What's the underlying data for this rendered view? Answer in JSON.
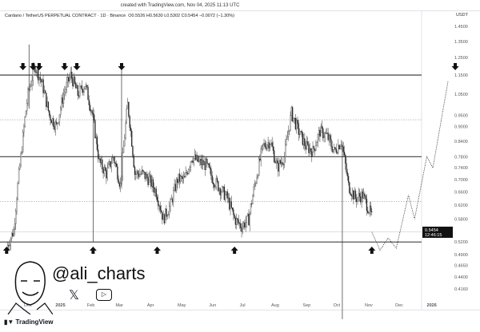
{
  "header": {
    "created": "created with TradingView.com, Nov 04, 2025 11:13 UTC",
    "symbol": "Cardano / TetherUS PERPETUAL CONTRACT · 1D · Binance",
    "ohlc": "O0.5526 H0.5630 L0.5302 C0.5454 −0.0072 (−1.30%)"
  },
  "chart_data": {
    "type": "candlestick",
    "y_scale": "log",
    "ylim": [
      0.4,
      1.5
    ],
    "unit": "USDT",
    "y_ticks": [
      "1.4500",
      "1.3500",
      "1.2500",
      "1.1500",
      "1.0500",
      "0.9500",
      "0.9000",
      "0.8400",
      "0.7800",
      "0.7400",
      "0.7000",
      "0.6600",
      "0.6200",
      "0.5800",
      "0.5200",
      "0.4900",
      "0.4650",
      "0.4400",
      "0.4160"
    ],
    "x_ticks": [
      {
        "label": "Dec",
        "date": "2024-12-01"
      },
      {
        "label": "2025",
        "date": "2025-01-01"
      },
      {
        "label": "Feb",
        "date": "2025-02-01"
      },
      {
        "label": "Mar",
        "date": "2025-03-01"
      },
      {
        "label": "Apr",
        "date": "2025-04-01"
      },
      {
        "label": "May",
        "date": "2025-05-01"
      },
      {
        "label": "Jun",
        "date": "2025-06-01"
      },
      {
        "label": "Jul",
        "date": "2025-07-01"
      },
      {
        "label": "Aug",
        "date": "2025-08-01"
      },
      {
        "label": "Sep",
        "date": "2025-09-01"
      },
      {
        "label": "Oct",
        "date": "2025-10-01"
      },
      {
        "label": "Nov",
        "date": "2025-11-01"
      },
      {
        "label": "Dec",
        "date": "2025-12-01"
      },
      {
        "label": "2026",
        "date": "2026-01-01"
      }
    ],
    "weekly_close": [
      [
        "2024-11-11",
        0.55
      ],
      [
        "2024-11-18",
        0.78
      ],
      [
        "2024-11-25",
        1.05
      ],
      [
        "2024-12-02",
        1.2
      ],
      [
        "2024-12-09",
        1.1
      ],
      [
        "2024-12-16",
        0.95
      ],
      [
        "2024-12-23",
        0.9
      ],
      [
        "2024-12-30",
        1.05
      ],
      [
        "2025-01-06",
        1.15
      ],
      [
        "2025-01-13",
        1.05
      ],
      [
        "2025-01-20",
        1.1
      ],
      [
        "2025-01-27",
        0.96
      ],
      [
        "2025-02-03",
        0.76
      ],
      [
        "2025-02-10",
        0.72
      ],
      [
        "2025-02-17",
        0.78
      ],
      [
        "2025-02-24",
        0.68
      ],
      [
        "2025-03-03",
        1.0
      ],
      [
        "2025-03-10",
        0.72
      ],
      [
        "2025-03-17",
        0.72
      ],
      [
        "2025-03-24",
        0.7
      ],
      [
        "2025-03-31",
        0.66
      ],
      [
        "2025-04-07",
        0.58
      ],
      [
        "2025-04-14",
        0.62
      ],
      [
        "2025-04-21",
        0.7
      ],
      [
        "2025-04-28",
        0.7
      ],
      [
        "2025-05-05",
        0.78
      ],
      [
        "2025-05-12",
        0.76
      ],
      [
        "2025-05-19",
        0.75
      ],
      [
        "2025-05-26",
        0.7
      ],
      [
        "2025-06-02",
        0.67
      ],
      [
        "2025-06-09",
        0.64
      ],
      [
        "2025-06-16",
        0.58
      ],
      [
        "2025-06-23",
        0.56
      ],
      [
        "2025-06-30",
        0.58
      ],
      [
        "2025-07-07",
        0.7
      ],
      [
        "2025-07-14",
        0.82
      ],
      [
        "2025-07-21",
        0.84
      ],
      [
        "2025-07-28",
        0.74
      ],
      [
        "2025-08-04",
        0.78
      ],
      [
        "2025-08-11",
        0.96
      ],
      [
        "2025-08-18",
        0.88
      ],
      [
        "2025-08-25",
        0.82
      ],
      [
        "2025-09-01",
        0.8
      ],
      [
        "2025-09-08",
        0.88
      ],
      [
        "2025-09-15",
        0.86
      ],
      [
        "2025-09-22",
        0.8
      ],
      [
        "2025-09-29",
        0.84
      ],
      [
        "2025-10-06",
        0.68
      ],
      [
        "2025-10-13",
        0.64
      ],
      [
        "2025-10-20",
        0.65
      ],
      [
        "2025-10-27",
        0.6
      ],
      [
        "2025-11-03",
        0.5454
      ]
    ],
    "wicks": [
      [
        "2024-12-02",
        1.33,
        0.98
      ],
      [
        "2025-03-03",
        1.18,
        0.68
      ],
      [
        "2025-10-06",
        0.3,
        0.84
      ],
      [
        "2025-02-03",
        0.95,
        0.52
      ]
    ],
    "levels_solid": [
      1.15,
      0.78,
      0.52
    ],
    "levels_dotted": [
      0.93,
      0.63
    ],
    "projection": [
      [
        "2025-11-04",
        0.5454
      ],
      [
        "2025-11-12",
        0.5
      ],
      [
        "2025-11-20",
        0.53
      ],
      [
        "2025-11-28",
        0.505
      ],
      [
        "2025-12-10",
        0.65
      ],
      [
        "2025-12-16",
        0.58
      ],
      [
        "2025-12-28",
        0.78
      ],
      [
        "2026-01-03",
        0.74
      ],
      [
        "2026-01-18",
        1.12
      ]
    ],
    "resistance_arrows": [
      "2024-11-26",
      "2024-12-06",
      "2024-12-12",
      "2025-01-06",
      "2025-01-18",
      "2025-03-03",
      "2026-01-25"
    ],
    "support_arrows": [
      "2024-11-10",
      "2025-02-03",
      "2025-04-07",
      "2025-06-22",
      "2025-11-04"
    ],
    "last_price": {
      "value": "0.5454",
      "countdown": "12:46:15"
    }
  },
  "watermark": {
    "handle": "@ali_charts"
  },
  "footer": {
    "brand": "TradingView"
  }
}
